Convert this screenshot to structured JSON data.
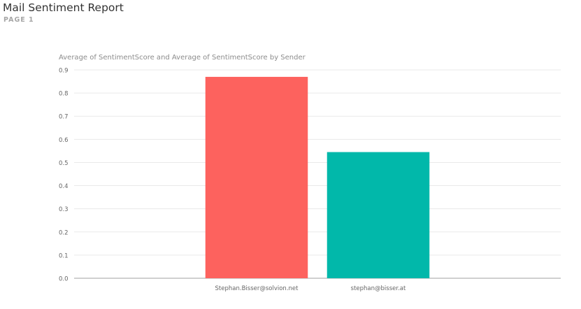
{
  "report": {
    "title": "Mail Sentiment Report",
    "page_label": "PAGE 1"
  },
  "colors": {
    "series": [
      "#fd625e",
      "#01b8aa"
    ],
    "gridline": "#e9e9e9",
    "axis_line": "#a0a0a0",
    "tick_text": "#666666",
    "chart_title": "#8c8c8c"
  },
  "chart_data": {
    "type": "bar",
    "title": "Average of SentimentScore and Average of SentimentScore by Sender",
    "xlabel": "",
    "ylabel": "",
    "categories": [
      "",
      "Stephan.Bisser@solvion.net",
      "stephan@bisser.at",
      ""
    ],
    "values": [
      0,
      0.87,
      0.545,
      0
    ],
    "bar_colors": [
      "#fd625e",
      "#fd625e",
      "#01b8aa",
      "#01b8aa"
    ],
    "ylim": [
      0,
      0.9
    ],
    "yticks": [
      "0.0",
      "0.1",
      "0.2",
      "0.3",
      "0.4",
      "0.5",
      "0.6",
      "0.7",
      "0.8",
      "0.9"
    ],
    "grid": true,
    "legend": "none"
  }
}
